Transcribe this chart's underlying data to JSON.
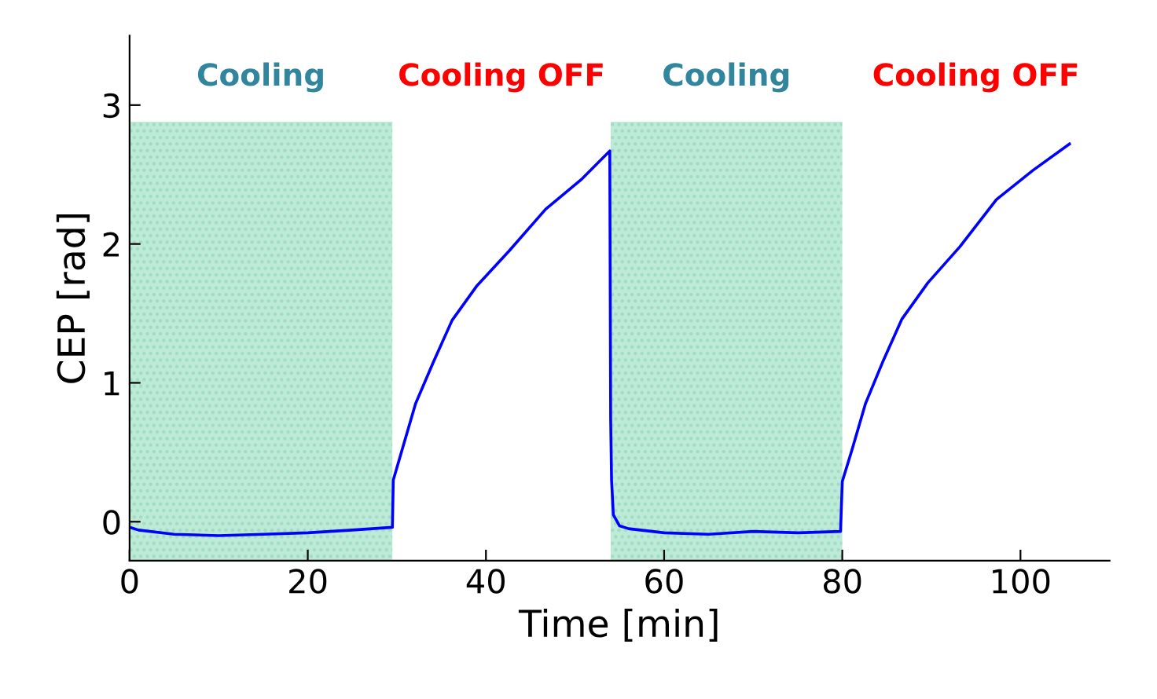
{
  "chart_data": {
    "type": "line",
    "xlabel": "Time [min]",
    "ylabel": "CEP [rad]",
    "series": [
      {
        "color": "#0000ff",
        "x": [
          0,
          1,
          5,
          10,
          15,
          20,
          25,
          29.5,
          29.6,
          30.6,
          32.1,
          34.1,
          36.2,
          39,
          42.6,
          46.7,
          50.8,
          53.9,
          54.0,
          54.1,
          54.3,
          55,
          56,
          60,
          65,
          70,
          75,
          79.8,
          80.0,
          81.1,
          82.6,
          84.6,
          86.7,
          89.6,
          93.2,
          97.3,
          101.4,
          105.5
        ],
        "values": [
          -0.04,
          -0.06,
          -0.09,
          -0.1,
          -0.09,
          -0.08,
          -0.06,
          -0.04,
          0.3,
          0.52,
          0.85,
          1.15,
          1.45,
          1.7,
          1.95,
          2.25,
          2.47,
          2.67,
          0.74,
          0.3,
          0.05,
          -0.03,
          -0.05,
          -0.08,
          -0.09,
          -0.07,
          -0.08,
          -0.07,
          0.29,
          0.52,
          0.85,
          1.16,
          1.46,
          1.72,
          1.98,
          2.32,
          2.53,
          2.72
        ]
      }
    ],
    "xlim": [
      0,
      110
    ],
    "xticks": [
      0,
      20,
      40,
      60,
      80,
      100
    ],
    "ylim": [
      -0.28,
      3.5
    ],
    "yticks": [
      0,
      1,
      2,
      3
    ],
    "bands": [
      {
        "axis": "x",
        "from": 0,
        "to": 29.5,
        "label": "Cooling",
        "color": "#bdebd8"
      },
      {
        "axis": "x",
        "from": 54,
        "to": 80,
        "label": "Cooling",
        "color": "#bdebd8"
      }
    ],
    "annotations": [
      "Cooling OFF",
      "Cooling OFF"
    ],
    "grid": false,
    "legend": false
  }
}
